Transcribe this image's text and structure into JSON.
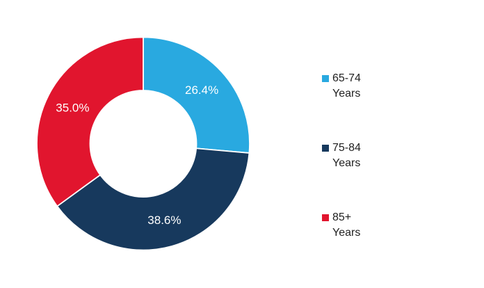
{
  "page": {
    "background": "#ffffff"
  },
  "chart_data": {
    "type": "pie",
    "subtype": "donut",
    "title": "",
    "categories": [
      "65-74 Years",
      "75-84 Years",
      "85+ Years"
    ],
    "values": [
      26.4,
      38.6,
      35.0
    ],
    "data_labels": [
      "26.4%",
      "38.6%",
      "35.0%"
    ],
    "colors": [
      "#29A9E0",
      "#17395D",
      "#E1152E"
    ],
    "start_angle_deg": 0,
    "direction": "clockwise",
    "inner_radius_ratio": 0.5,
    "label_color": "#ffffff",
    "separator_color": "#ffffff",
    "legend_position": "right",
    "legend": {
      "entries": [
        {
          "label": "65-74 Years",
          "color": "#29A9E0"
        },
        {
          "label": "75-84 Years",
          "color": "#17395D"
        },
        {
          "label": "85+ Years",
          "color": "#E1152E"
        }
      ]
    }
  }
}
